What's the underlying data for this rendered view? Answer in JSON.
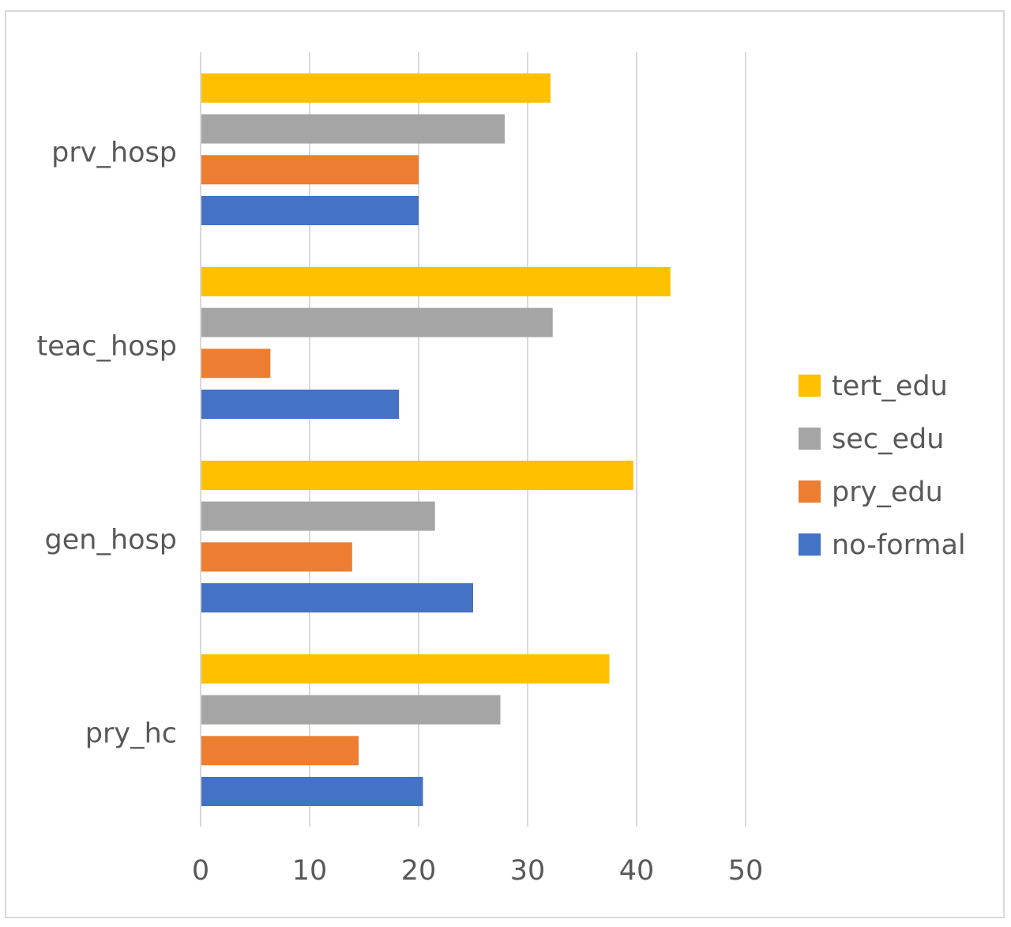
{
  "chart_data": {
    "type": "bar",
    "orientation": "horizontal",
    "title": "",
    "xlabel": "",
    "ylabel": "",
    "categories": [
      "pry_hc",
      "gen_hosp",
      "teac_hosp",
      "prv_hosp"
    ],
    "series": [
      {
        "name": "no-formal",
        "color": "#4472c4",
        "values": [
          20.4,
          25.0,
          18.2,
          20.0
        ]
      },
      {
        "name": "pry_edu",
        "color": "#ed7d31",
        "values": [
          14.5,
          13.9,
          6.4,
          20.0
        ]
      },
      {
        "name": "sec_edu",
        "color": "#a5a5a5",
        "values": [
          27.5,
          21.5,
          32.3,
          27.9
        ]
      },
      {
        "name": "tert_edu",
        "color": "#ffc000",
        "values": [
          37.5,
          39.7,
          43.1,
          32.1
        ]
      }
    ],
    "xlim": [
      0,
      50
    ],
    "xticks": [
      "0",
      "10",
      "20",
      "30",
      "40",
      "50"
    ],
    "grid": true,
    "legend_position": "right",
    "legend_order": [
      "tert_edu",
      "sec_edu",
      "pry_edu",
      "no-formal"
    ]
  }
}
